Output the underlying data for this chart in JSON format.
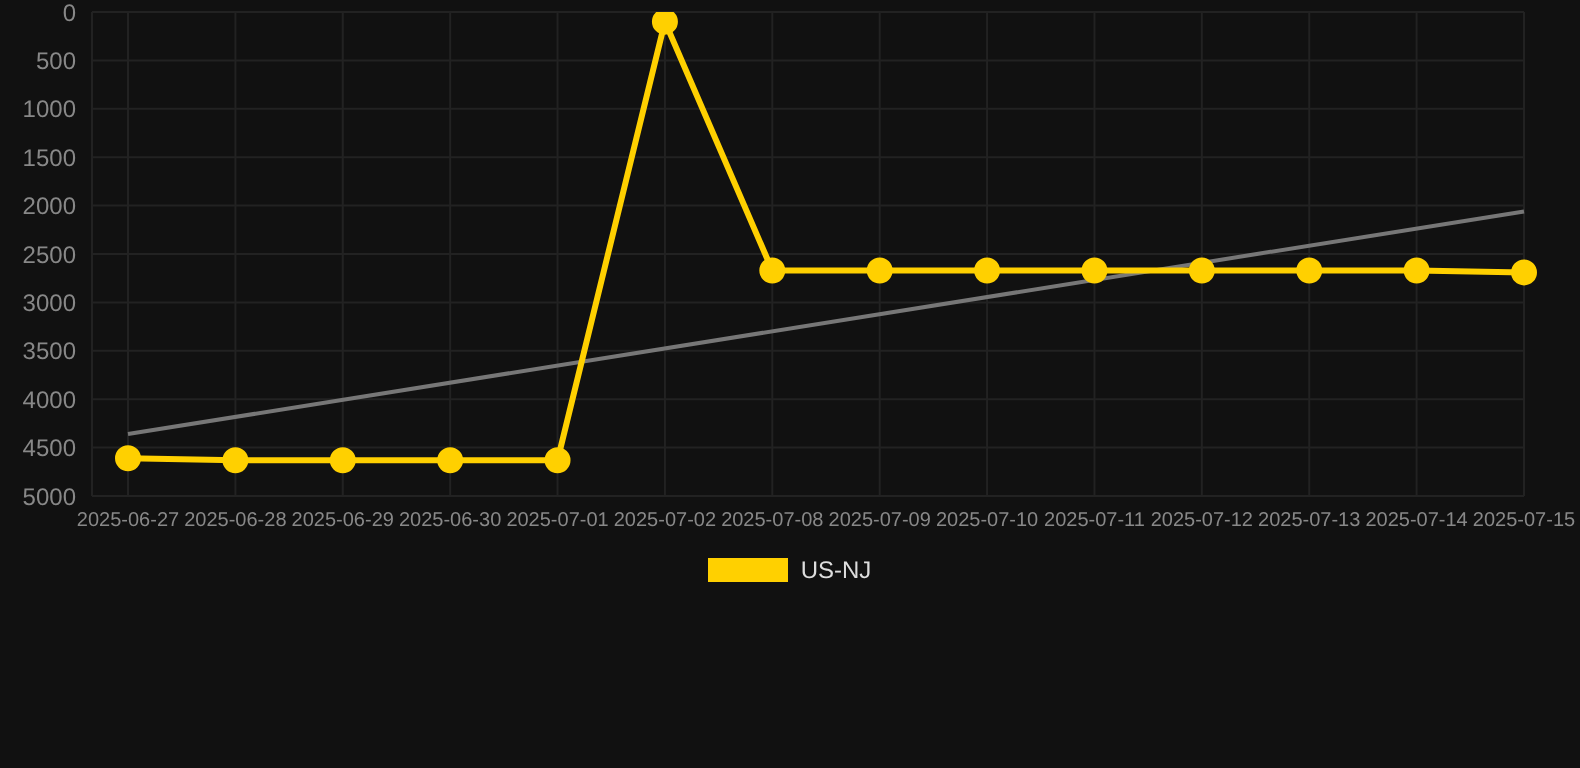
{
  "chart_data": {
    "type": "line",
    "categories": [
      "2025-06-27",
      "2025-06-28",
      "2025-06-29",
      "2025-06-30",
      "2025-07-01",
      "2025-07-02",
      "2025-07-08",
      "2025-07-09",
      "2025-07-10",
      "2025-07-11",
      "2025-07-12",
      "2025-07-13",
      "2025-07-14",
      "2025-07-15"
    ],
    "series": [
      {
        "name": "US-NJ",
        "color": "#ffd000",
        "values": [
          4610,
          4630,
          4630,
          4630,
          4630,
          100,
          2670,
          2670,
          2670,
          2670,
          2670,
          2670,
          2670,
          2690
        ],
        "marker": "circle"
      },
      {
        "type": "line",
        "color": "#777777",
        "values": [
          4360,
          null,
          null,
          null,
          null,
          null,
          null,
          null,
          null,
          null,
          null,
          null,
          null,
          2060
        ],
        "marker": "none"
      }
    ],
    "ylim": [
      5000,
      0
    ],
    "yticks": [
      0,
      500,
      1000,
      1500,
      2000,
      2500,
      3000,
      3500,
      4000,
      4500,
      5000
    ],
    "grid": true,
    "legend": "bottom"
  }
}
